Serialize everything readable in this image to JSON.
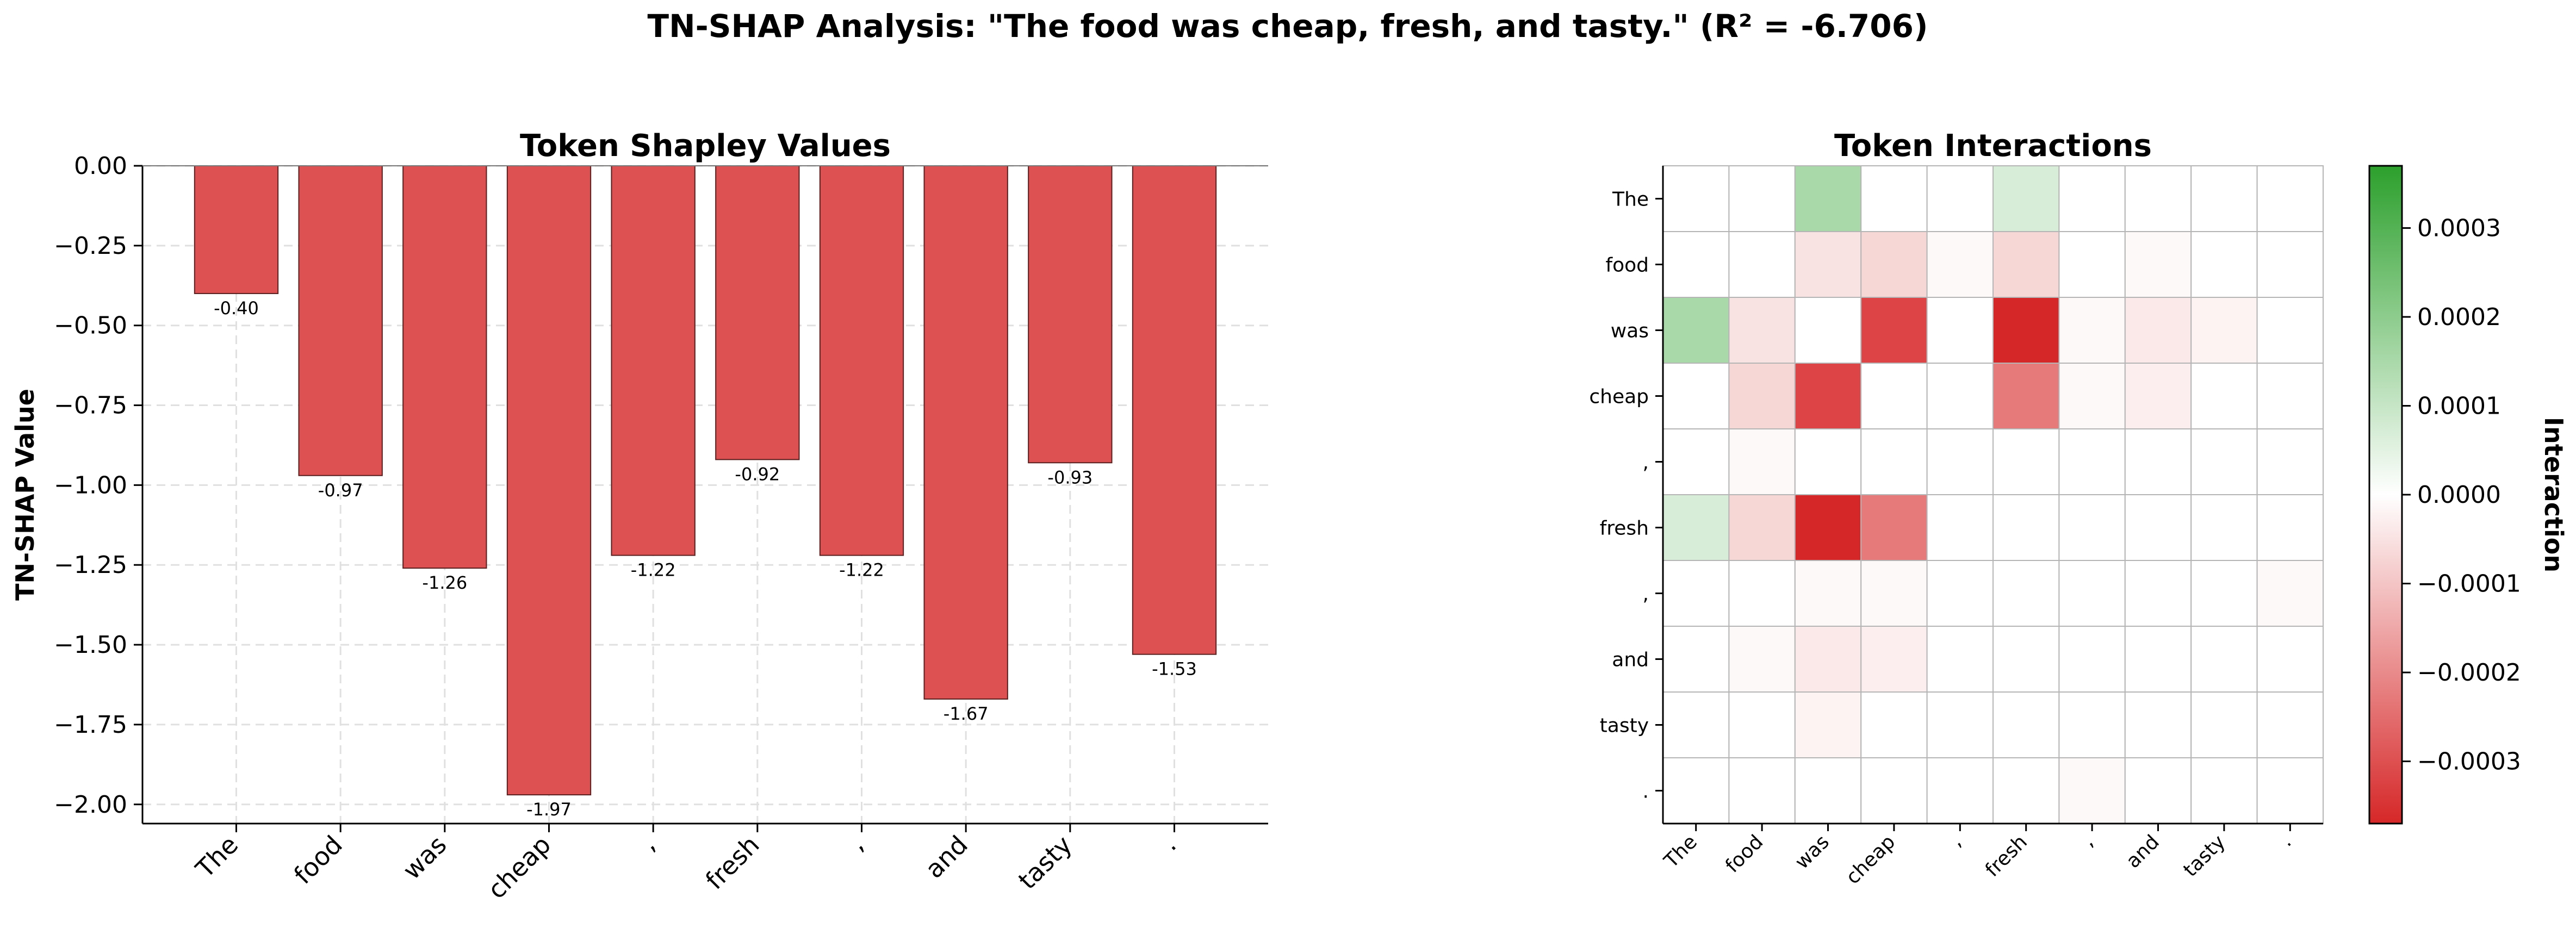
{
  "suptitle": "TN-SHAP Analysis: \"The food was cheap, fresh, and tasty.\" (R² = -6.706)",
  "tokens": [
    "The",
    "food",
    "was",
    "cheap",
    ",",
    "fresh",
    ",",
    "and",
    "tasty",
    "."
  ],
  "colors": {
    "bar_fill": "#dd5152",
    "bar_edge": "#5a2020",
    "grid": "#e0e0e0",
    "cell_line": "#b5b5b5",
    "positive": "#2ca02c",
    "zero": "#ffffff",
    "negative": "#d62728"
  },
  "chart_data": [
    {
      "type": "bar",
      "title": "Token Shapley Values",
      "xlabel": "",
      "ylabel": "TN-SHAP Value",
      "categories": [
        "The",
        "food",
        "was",
        "cheap",
        ",",
        "fresh",
        ",",
        "and",
        "tasty",
        "."
      ],
      "values": [
        -0.4,
        -0.97,
        -1.26,
        -1.97,
        -1.22,
        -0.92,
        -1.22,
        -1.67,
        -0.93,
        -1.53
      ],
      "data_labels": [
        "-0.40",
        "-0.97",
        "-1.26",
        "-1.97",
        "-1.22",
        "-0.92",
        "-1.22",
        "-1.67",
        "-0.93",
        "-1.53"
      ],
      "ylim": [
        -2.06,
        0.0
      ],
      "yticks": [
        0.0,
        -0.25,
        -0.5,
        -0.75,
        -1.0,
        -1.25,
        -1.5,
        -1.75,
        -2.0
      ],
      "ytick_labels": [
        "0.00",
        "−0.25",
        "−0.50",
        "−0.75",
        "−1.00",
        "−1.25",
        "−1.50",
        "−1.75",
        "−2.00"
      ],
      "grid": true
    },
    {
      "type": "heatmap",
      "title": "Token Interactions",
      "x_categories": [
        "The",
        "food",
        "was",
        "cheap",
        ",",
        "fresh",
        ",",
        "and",
        "tasty",
        "."
      ],
      "y_categories": [
        "The",
        "food",
        "was",
        "cheap",
        ",",
        "fresh",
        ",",
        "and",
        "tasty",
        "."
      ],
      "values": [
        [
          0,
          0,
          0.00015,
          0,
          0,
          7e-05,
          0,
          0,
          0,
          0
        ],
        [
          0,
          0,
          -5e-05,
          -7e-05,
          -1e-05,
          -7e-05,
          0,
          -1e-05,
          0,
          0
        ],
        [
          0.00015,
          -5e-05,
          0,
          -0.00032,
          0,
          -0.00037,
          -1e-05,
          -4e-05,
          -2e-05,
          0
        ],
        [
          0,
          -7e-05,
          -0.00032,
          0,
          0,
          -0.00023,
          -1e-05,
          -3e-05,
          0,
          0
        ],
        [
          0,
          -1e-05,
          0,
          0,
          0,
          0,
          0,
          0,
          0,
          0
        ],
        [
          7e-05,
          -7e-05,
          -0.00037,
          -0.00023,
          0,
          0,
          0,
          0,
          0,
          0
        ],
        [
          0,
          0,
          -1e-05,
          -1e-05,
          0,
          0,
          0,
          0,
          0,
          -1e-05
        ],
        [
          0,
          -1e-05,
          -4e-05,
          -3e-05,
          0,
          0,
          0,
          0,
          0,
          0
        ],
        [
          0,
          0,
          -2e-05,
          0,
          0,
          0,
          0,
          0,
          0,
          0
        ],
        [
          0,
          0,
          0,
          0,
          0,
          0,
          -1e-05,
          0,
          0,
          0
        ]
      ],
      "colorbar": {
        "label": "Interaction",
        "range": [
          -0.00037,
          0.00037
        ],
        "ticks": [
          0.0003,
          0.0002,
          0.0001,
          0.0,
          -0.0001,
          -0.0002,
          -0.0003
        ],
        "tick_labels": [
          "0.0003",
          "0.0002",
          "0.0001",
          "0.0000",
          "−0.0001",
          "−0.0002",
          "−0.0003"
        ]
      }
    }
  ]
}
